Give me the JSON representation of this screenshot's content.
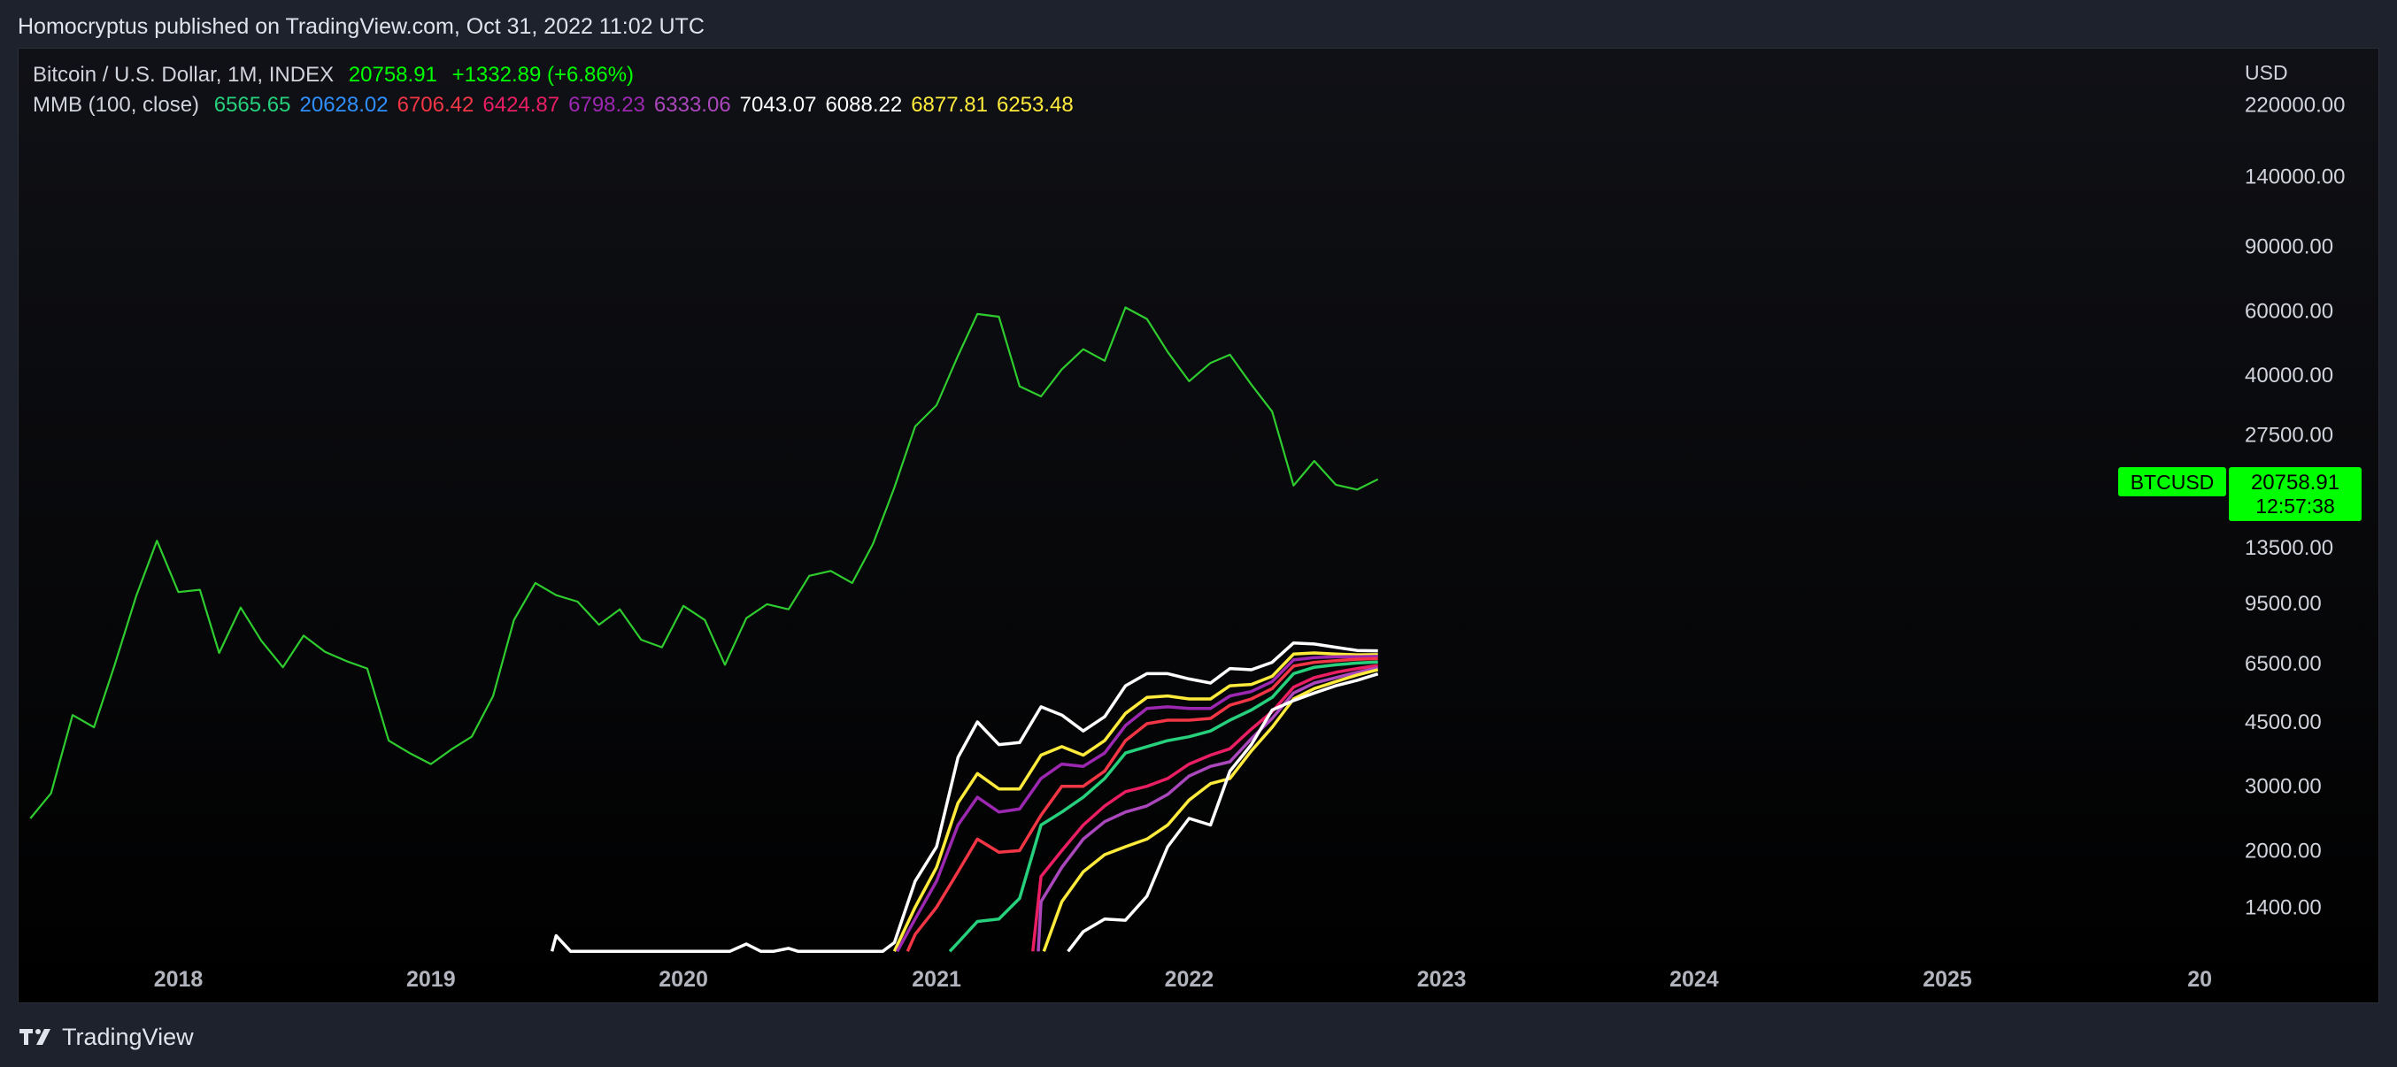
{
  "header": {
    "publish_line": "Homocryptus published on TradingView.com, Oct 31, 2022 11:02 UTC"
  },
  "footer": {
    "brand": "TradingView",
    "logo_icon": "tradingview-logo-icon"
  },
  "legend": {
    "symbol_title": "Bitcoin / U.S. Dollar, 1M, INDEX",
    "symbol_price": "20758.91",
    "symbol_change": "+1332.89 (+6.86%)",
    "indicator_title": "MMB (100, close)",
    "indicator_values": [
      {
        "text": "6565.65",
        "color": "#26d07c"
      },
      {
        "text": "20628.02",
        "color": "#2f8fff"
      },
      {
        "text": "6706.42",
        "color": "#f23645"
      },
      {
        "text": "6424.87",
        "color": "#e91e63"
      },
      {
        "text": "6798.23",
        "color": "#9c27b0"
      },
      {
        "text": "6333.06",
        "color": "#ab47bc"
      },
      {
        "text": "7043.07",
        "color": "#ffffff"
      },
      {
        "text": "6088.22",
        "color": "#ffffff"
      },
      {
        "text": "6877.81",
        "color": "#ffeb3b"
      },
      {
        "text": "6253.48",
        "color": "#ffeb3b"
      }
    ]
  },
  "price_tag": {
    "symbol": "BTCUSD",
    "price": "20758.91",
    "countdown": "12:57:38",
    "color": "#00ff00"
  },
  "colors": {
    "price_line": "#2ecc2e",
    "up": "#00ff00"
  },
  "chart_data": {
    "type": "line",
    "currency_label": "USD",
    "y_scale": "log",
    "y_ticks": [
      "220000.00",
      "140000.00",
      "90000.00",
      "60000.00",
      "40000.00",
      "27500.00",
      "13500.00",
      "9500.00",
      "6500.00",
      "4500.00",
      "3000.00",
      "2000.00",
      "1400.00"
    ],
    "x_ticks": [
      "2018",
      "2019",
      "2020",
      "2021",
      "2022",
      "2023",
      "2024",
      "2025",
      "20"
    ],
    "ylim": [
      1050,
      280000
    ],
    "xlim": [
      "2017-05-15",
      "2025-12-01"
    ],
    "series": [
      {
        "color": "#2ecc2e",
        "x": [
          "2017-06-01",
          "2017-07-01",
          "2017-08-01",
          "2017-09-01",
          "2017-10-01",
          "2017-11-01",
          "2017-12-01",
          "2018-01-01",
          "2018-02-01",
          "2018-03-01",
          "2018-04-01",
          "2018-05-01",
          "2018-06-01",
          "2018-07-01",
          "2018-08-01",
          "2018-09-01",
          "2018-10-01",
          "2018-11-01",
          "2018-12-01",
          "2019-01-01",
          "2019-02-01",
          "2019-03-01",
          "2019-04-01",
          "2019-05-01",
          "2019-06-01",
          "2019-07-01",
          "2019-08-01",
          "2019-09-01",
          "2019-10-01",
          "2019-11-01",
          "2019-12-01",
          "2020-01-01",
          "2020-02-01",
          "2020-03-01",
          "2020-04-01",
          "2020-05-01",
          "2020-06-01",
          "2020-07-01",
          "2020-08-01",
          "2020-09-01",
          "2020-10-01",
          "2020-11-01",
          "2020-12-01",
          "2021-01-01",
          "2021-02-01",
          "2021-03-01",
          "2021-04-01",
          "2021-05-01",
          "2021-06-01",
          "2021-07-01",
          "2021-08-01",
          "2021-09-01",
          "2021-10-01",
          "2021-11-01",
          "2021-12-01",
          "2022-01-01",
          "2022-02-01",
          "2022-03-01",
          "2022-04-01",
          "2022-05-01",
          "2022-06-01",
          "2022-07-01",
          "2022-08-01",
          "2022-09-01",
          "2022-10-01"
        ],
        "y": [
          2450,
          2870,
          4700,
          4350,
          6450,
          9950,
          14100,
          10200,
          10350,
          6950,
          9250,
          7500,
          6350,
          7750,
          7000,
          6600,
          6300,
          4000,
          3700,
          3450,
          3800,
          4100,
          5300,
          8550,
          10800,
          10000,
          9600,
          8300,
          9150,
          7550,
          7200,
          9350,
          8550,
          6450,
          8650,
          9450,
          9150,
          11300,
          11650,
          10800,
          13800,
          19700,
          28950,
          33100,
          45200,
          58800,
          57800,
          37300,
          35000,
          41500,
          47100,
          43800,
          61300,
          57000,
          46300,
          38500,
          43200,
          45500,
          37700,
          31800,
          19950,
          23300,
          20050,
          19450,
          20758.91
        ]
      }
    ],
    "bands": [
      {
        "name": "white_outer",
        "color": "#ffffff",
        "points": [
          [
            "2019-06-25",
            1060
          ],
          [
            "2019-07-01",
            1170
          ],
          [
            "2019-07-22",
            1060
          ],
          [
            "2020-03-08",
            1060
          ],
          [
            "2020-04-01",
            1110
          ],
          [
            "2020-04-22",
            1060
          ],
          [
            "2020-05-10",
            1060
          ],
          [
            "2020-06-01",
            1080
          ],
          [
            "2020-06-15",
            1060
          ],
          [
            "2020-10-15",
            1060
          ],
          [
            "2020-11-01",
            1120
          ],
          [
            "2020-12-01",
            1650
          ],
          [
            "2021-01-01",
            2050
          ],
          [
            "2021-02-01",
            3600
          ],
          [
            "2021-03-01",
            4500
          ],
          [
            "2021-04-01",
            3900
          ],
          [
            "2021-05-01",
            3950
          ],
          [
            "2021-06-01",
            4950
          ],
          [
            "2021-07-01",
            4700
          ],
          [
            "2021-08-01",
            4250
          ],
          [
            "2021-09-01",
            4650
          ],
          [
            "2021-10-01",
            5650
          ],
          [
            "2021-11-01",
            6100
          ],
          [
            "2021-12-01",
            6100
          ],
          [
            "2022-01-01",
            5900
          ],
          [
            "2022-02-01",
            5750
          ],
          [
            "2022-03-01",
            6300
          ],
          [
            "2022-04-01",
            6250
          ],
          [
            "2022-05-01",
            6550
          ],
          [
            "2022-06-01",
            7400
          ],
          [
            "2022-07-01",
            7350
          ],
          [
            "2022-08-01",
            7200
          ],
          [
            "2022-09-01",
            7060
          ],
          [
            "2022-10-01",
            7043.07
          ]
        ]
      },
      {
        "name": "yellow_outer",
        "color": "#ffeb3b",
        "points": [
          [
            "2020-11-01",
            1060
          ],
          [
            "2020-12-01",
            1400
          ],
          [
            "2021-01-01",
            1800
          ],
          [
            "2021-02-01",
            2700
          ],
          [
            "2021-03-01",
            3250
          ],
          [
            "2021-04-01",
            2950
          ],
          [
            "2021-05-01",
            2950
          ],
          [
            "2021-06-01",
            3650
          ],
          [
            "2021-07-01",
            3850
          ],
          [
            "2021-08-01",
            3650
          ],
          [
            "2021-09-01",
            4000
          ],
          [
            "2021-10-01",
            4750
          ],
          [
            "2021-11-01",
            5250
          ],
          [
            "2021-12-01",
            5300
          ],
          [
            "2022-01-01",
            5200
          ],
          [
            "2022-02-01",
            5200
          ],
          [
            "2022-03-01",
            5650
          ],
          [
            "2022-04-01",
            5700
          ],
          [
            "2022-05-01",
            6000
          ],
          [
            "2022-06-01",
            6900
          ],
          [
            "2022-07-01",
            6950
          ],
          [
            "2022-08-01",
            6900
          ],
          [
            "2022-09-01",
            6870
          ],
          [
            "2022-10-01",
            6877.81
          ]
        ]
      },
      {
        "name": "purple_outer",
        "color": "#9c27b0",
        "points": [
          [
            "2020-11-05",
            1060
          ],
          [
            "2020-12-01",
            1300
          ],
          [
            "2021-01-01",
            1650
          ],
          [
            "2021-02-01",
            2350
          ],
          [
            "2021-03-01",
            2800
          ],
          [
            "2021-04-01",
            2550
          ],
          [
            "2021-05-01",
            2600
          ],
          [
            "2021-06-01",
            3150
          ],
          [
            "2021-07-01",
            3450
          ],
          [
            "2021-08-01",
            3400
          ],
          [
            "2021-09-01",
            3700
          ],
          [
            "2021-10-01",
            4400
          ],
          [
            "2021-11-01",
            4900
          ],
          [
            "2021-12-01",
            4950
          ],
          [
            "2022-01-01",
            4900
          ],
          [
            "2022-02-01",
            4900
          ],
          [
            "2022-03-01",
            5300
          ],
          [
            "2022-04-01",
            5450
          ],
          [
            "2022-05-01",
            5800
          ],
          [
            "2022-06-01",
            6650
          ],
          [
            "2022-07-01",
            6750
          ],
          [
            "2022-08-01",
            6780
          ],
          [
            "2022-09-01",
            6790
          ],
          [
            "2022-10-01",
            6798.23
          ]
        ]
      },
      {
        "name": "red_outer",
        "color": "#f23645",
        "points": [
          [
            "2020-11-20",
            1060
          ],
          [
            "2020-12-01",
            1180
          ],
          [
            "2021-01-01",
            1400
          ],
          [
            "2021-02-01",
            1750
          ],
          [
            "2021-03-01",
            2150
          ],
          [
            "2021-04-01",
            1980
          ],
          [
            "2021-05-01",
            2000
          ],
          [
            "2021-06-01",
            2500
          ],
          [
            "2021-07-01",
            3000
          ],
          [
            "2021-08-01",
            3000
          ],
          [
            "2021-09-01",
            3300
          ],
          [
            "2021-10-01",
            4000
          ],
          [
            "2021-11-01",
            4450
          ],
          [
            "2021-12-01",
            4550
          ],
          [
            "2022-01-01",
            4550
          ],
          [
            "2022-02-01",
            4600
          ],
          [
            "2022-03-01",
            5000
          ],
          [
            "2022-04-01",
            5200
          ],
          [
            "2022-05-01",
            5550
          ],
          [
            "2022-06-01",
            6400
          ],
          [
            "2022-07-01",
            6550
          ],
          [
            "2022-08-01",
            6620
          ],
          [
            "2022-09-01",
            6680
          ],
          [
            "2022-10-01",
            6706.42
          ]
        ]
      },
      {
        "name": "green",
        "color": "#26d07c",
        "points": [
          [
            "2021-01-20",
            1060
          ],
          [
            "2021-02-01",
            1120
          ],
          [
            "2021-03-01",
            1280
          ],
          [
            "2021-04-01",
            1300
          ],
          [
            "2021-05-01",
            1480
          ],
          [
            "2021-06-01",
            2350
          ],
          [
            "2021-07-01",
            2550
          ],
          [
            "2021-08-01",
            2800
          ],
          [
            "2021-09-01",
            3150
          ],
          [
            "2021-10-01",
            3700
          ],
          [
            "2021-11-01",
            3850
          ],
          [
            "2021-12-01",
            4000
          ],
          [
            "2022-01-01",
            4100
          ],
          [
            "2022-02-01",
            4250
          ],
          [
            "2022-03-01",
            4550
          ],
          [
            "2022-04-01",
            4850
          ],
          [
            "2022-05-01",
            5250
          ],
          [
            "2022-06-01",
            6100
          ],
          [
            "2022-07-01",
            6350
          ],
          [
            "2022-08-01",
            6450
          ],
          [
            "2022-09-01",
            6520
          ],
          [
            "2022-10-01",
            6565.65
          ]
        ]
      },
      {
        "name": "red_inner",
        "color": "#e91e63",
        "points": [
          [
            "2021-05-20",
            1060
          ],
          [
            "2021-06-01",
            1700
          ],
          [
            "2021-07-01",
            2000
          ],
          [
            "2021-08-01",
            2350
          ],
          [
            "2021-09-01",
            2650
          ],
          [
            "2021-10-01",
            2900
          ],
          [
            "2021-11-01",
            3000
          ],
          [
            "2021-12-01",
            3150
          ],
          [
            "2022-01-01",
            3450
          ],
          [
            "2022-02-01",
            3650
          ],
          [
            "2022-03-01",
            3800
          ],
          [
            "2022-04-01",
            4300
          ],
          [
            "2022-05-01",
            4800
          ],
          [
            "2022-06-01",
            5600
          ],
          [
            "2022-07-01",
            5950
          ],
          [
            "2022-08-01",
            6150
          ],
          [
            "2022-09-01",
            6300
          ],
          [
            "2022-10-01",
            6424.87
          ]
        ]
      },
      {
        "name": "purple_inner",
        "color": "#ab47bc",
        "points": [
          [
            "2021-05-28",
            1060
          ],
          [
            "2021-06-01",
            1450
          ],
          [
            "2021-07-01",
            1800
          ],
          [
            "2021-08-01",
            2150
          ],
          [
            "2021-09-01",
            2400
          ],
          [
            "2021-10-01",
            2550
          ],
          [
            "2021-11-01",
            2650
          ],
          [
            "2021-12-01",
            2850
          ],
          [
            "2022-01-01",
            3200
          ],
          [
            "2022-02-01",
            3400
          ],
          [
            "2022-03-01",
            3500
          ],
          [
            "2022-04-01",
            4050
          ],
          [
            "2022-05-01",
            4600
          ],
          [
            "2022-06-01",
            5400
          ],
          [
            "2022-07-01",
            5750
          ],
          [
            "2022-08-01",
            5950
          ],
          [
            "2022-09-01",
            6150
          ],
          [
            "2022-10-01",
            6333.06
          ]
        ]
      },
      {
        "name": "yellow_inner",
        "color": "#ffeb3b",
        "points": [
          [
            "2021-06-05",
            1060
          ],
          [
            "2021-07-01",
            1450
          ],
          [
            "2021-08-01",
            1750
          ],
          [
            "2021-09-01",
            1950
          ],
          [
            "2021-10-01",
            2050
          ],
          [
            "2021-11-01",
            2150
          ],
          [
            "2021-12-01",
            2350
          ],
          [
            "2022-01-01",
            2750
          ],
          [
            "2022-02-01",
            3050
          ],
          [
            "2022-03-01",
            3150
          ],
          [
            "2022-04-01",
            3750
          ],
          [
            "2022-05-01",
            4350
          ],
          [
            "2022-06-01",
            5200
          ],
          [
            "2022-07-01",
            5550
          ],
          [
            "2022-08-01",
            5800
          ],
          [
            "2022-09-01",
            6050
          ],
          [
            "2022-10-01",
            6253.48
          ]
        ]
      },
      {
        "name": "white_inner",
        "color": "#ffffff",
        "points": [
          [
            "2021-07-10",
            1060
          ],
          [
            "2021-08-01",
            1200
          ],
          [
            "2021-09-01",
            1300
          ],
          [
            "2021-10-01",
            1290
          ],
          [
            "2021-11-01",
            1500
          ],
          [
            "2021-12-01",
            2050
          ],
          [
            "2022-01-01",
            2450
          ],
          [
            "2022-02-01",
            2350
          ],
          [
            "2022-03-01",
            3300
          ],
          [
            "2022-04-01",
            3900
          ],
          [
            "2022-05-01",
            4850
          ],
          [
            "2022-06-01",
            5150
          ],
          [
            "2022-07-01",
            5400
          ],
          [
            "2022-08-01",
            5650
          ],
          [
            "2022-09-01",
            5850
          ],
          [
            "2022-10-01",
            6088.22
          ]
        ]
      }
    ]
  }
}
